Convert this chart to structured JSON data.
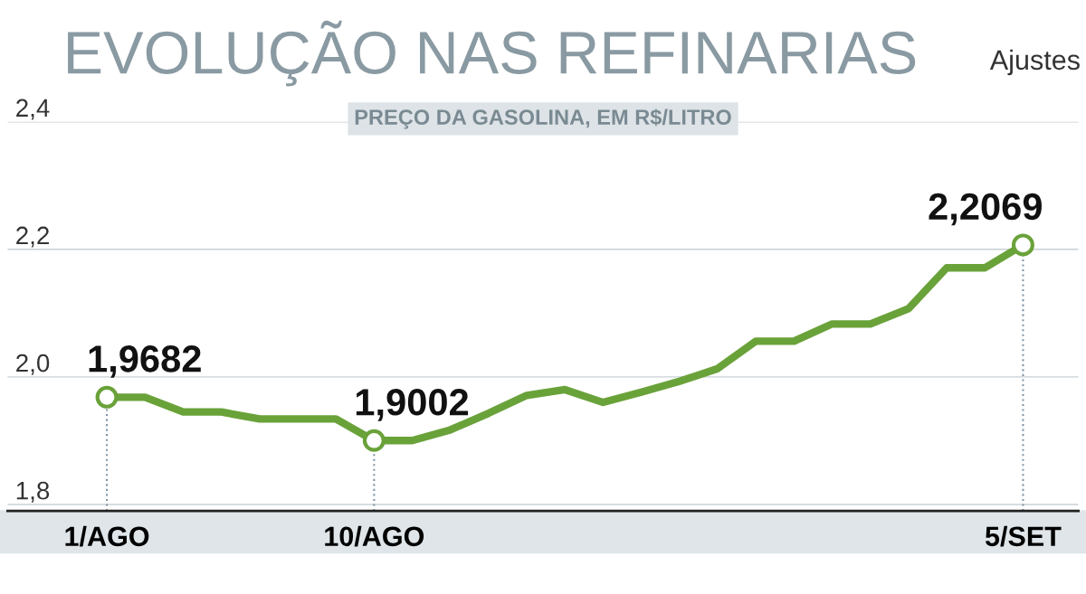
{
  "chart_data": {
    "type": "line",
    "title": "EVOLUÇÃO NAS REFINARIAS",
    "subtitle": "Ajustes",
    "ylabel": "PREÇO DA GASOLINA, EM R$/LITRO",
    "categories": [
      "1/AGO",
      null,
      null,
      null,
      null,
      null,
      null,
      "10/AGO",
      null,
      null,
      null,
      null,
      null,
      null,
      null,
      null,
      null,
      null,
      null,
      null,
      null,
      null,
      null,
      null,
      "5/SET"
    ],
    "series": [
      {
        "color": "#6aa23a",
        "values": [
          1.9682,
          1.9682,
          1.945,
          1.945,
          1.934,
          1.934,
          1.934,
          1.9002,
          1.9002,
          1.917,
          1.943,
          1.971,
          1.98,
          1.96,
          1.976,
          1.993,
          2.013,
          2.056,
          2.056,
          2.083,
          2.083,
          2.107,
          2.171,
          2.171,
          2.2069
        ],
        "value_labels": [
          "1,9682",
          null,
          null,
          null,
          null,
          null,
          null,
          "1,9002",
          null,
          null,
          null,
          null,
          null,
          null,
          null,
          null,
          null,
          null,
          null,
          null,
          null,
          null,
          null,
          null,
          "2,2069"
        ]
      }
    ],
    "ylim": [
      1.79,
      2.4
    ],
    "yticks": [
      {
        "value": 1.8,
        "label": "1,8"
      },
      {
        "value": 2.0,
        "label": "2,0"
      },
      {
        "value": 2.2,
        "label": "2,2"
      },
      {
        "value": 2.4,
        "label": "2,4"
      }
    ],
    "grid": "y",
    "line_style": "solid",
    "ref_lines": [
      {
        "axis": "x",
        "value": "1/AGO",
        "color": "#7f95a8",
        "line_style": "dotted"
      },
      {
        "axis": "x",
        "value": "10/AGO",
        "color": "#7f95a8",
        "line_style": "dotted"
      },
      {
        "axis": "x",
        "value": "5/SET",
        "color": "#7f95a8",
        "line_style": "dotted"
      }
    ]
  }
}
